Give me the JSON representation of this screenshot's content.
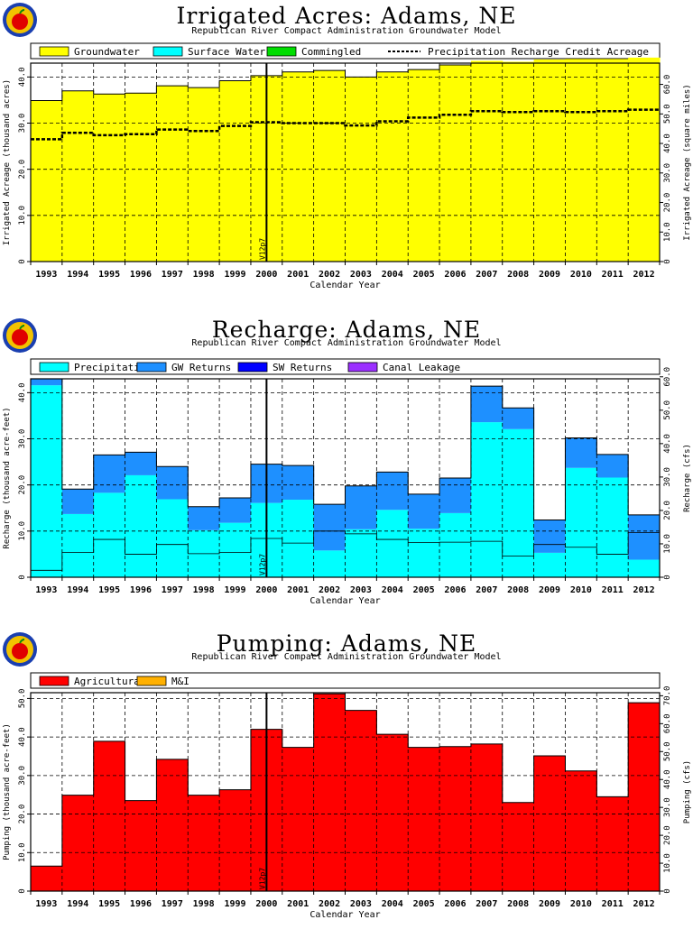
{
  "colors": {
    "groundwater": "#ffff00",
    "surface_water": "#00ffff",
    "commingled": "#00dd00",
    "precipitation": "#00ffff",
    "gw_returns": "#1e90ff",
    "sw_returns": "#0000ff",
    "canal_leakage": "#9b30ff",
    "agricultural": "#ff0000",
    "mi": "#ffb000"
  },
  "chart_data": [
    {
      "type": "bar",
      "title": "Irrigated Acres: Adams, NE",
      "subtitle": "Republican River Compact Administration Groundwater Model",
      "xlabel": "Calendar Year",
      "ylabel": "Irrigated Acreage (thousand acres)",
      "ylabel_right": "Irrigated Acreage (square miles)",
      "categories": [
        "1993",
        "1994",
        "1995",
        "1996",
        "1997",
        "1998",
        "1999",
        "2000",
        "2001",
        "2002",
        "2003",
        "2004",
        "2005",
        "2006",
        "2007",
        "2008",
        "2009",
        "2010",
        "2011",
        "2012"
      ],
      "ylim": [
        0,
        43
      ],
      "yticks": [
        10.0,
        20.0,
        30.0,
        40.0
      ],
      "yticks_right": [
        10.0,
        20.0,
        30.0,
        40.0,
        50.0,
        60.0
      ],
      "series": [
        {
          "name": "Groundwater",
          "values": [
            34.9,
            37.0,
            36.3,
            36.5,
            38.1,
            37.7,
            39.2,
            40.3,
            41.1,
            41.4,
            40.0,
            41.1,
            41.6,
            42.6,
            43.5,
            43.3,
            43.8,
            43.9,
            43.9,
            44.2
          ]
        },
        {
          "name": "Surface Water",
          "values": [
            0,
            0,
            0,
            0,
            0,
            0,
            0,
            0,
            0,
            0,
            0,
            0,
            0,
            0,
            0,
            0,
            0,
            0,
            0,
            0
          ]
        },
        {
          "name": "Commingled",
          "values": [
            0,
            0,
            0,
            0,
            0,
            0,
            0,
            0,
            0,
            0,
            0,
            0,
            0,
            0,
            0,
            0,
            0,
            0,
            0,
            0
          ]
        }
      ],
      "line_series": {
        "name": "Precipitation Recharge Credit Acreage",
        "values": [
          26.5,
          27.9,
          27.4,
          27.6,
          28.6,
          28.3,
          29.4,
          30.2,
          30.0,
          30.0,
          29.5,
          30.4,
          31.2,
          31.8,
          32.6,
          32.4,
          32.6,
          32.4,
          32.6,
          32.9
        ]
      },
      "marker": {
        "label": "V12p7",
        "at": "2000.5"
      }
    },
    {
      "type": "bar",
      "title": "Recharge: Adams, NE",
      "subtitle": "Republican River Compact Administration Groundwater Model",
      "xlabel": "Calendar Year",
      "ylabel": "Recharge (thousand acre-feet)",
      "ylabel_right": "Recharge (cfs)",
      "categories": [
        "1993",
        "1994",
        "1995",
        "1996",
        "1997",
        "1998",
        "1999",
        "2000",
        "2001",
        "2002",
        "2003",
        "2004",
        "2005",
        "2006",
        "2007",
        "2008",
        "2009",
        "2010",
        "2011",
        "2012"
      ],
      "ylim": [
        0,
        43
      ],
      "yticks": [
        10.0,
        20.0,
        30.0,
        40.0
      ],
      "yticks_right": [
        10.0,
        20.0,
        30.0,
        40.0,
        50.0,
        60.0
      ],
      "series": [
        {
          "name": "Precipitation",
          "values": [
            41.6,
            13.7,
            18.3,
            22.1,
            16.9,
            10.2,
            11.8,
            16.1,
            16.8,
            5.8,
            10.4,
            14.6,
            10.5,
            13.9,
            33.6,
            32.1,
            5.3,
            23.7,
            21.6,
            3.8
          ]
        },
        {
          "name": "GW Returns",
          "values": [
            1.5,
            5.4,
            8.2,
            5.0,
            7.1,
            5.1,
            5.4,
            8.4,
            7.4,
            10.0,
            9.4,
            8.2,
            7.5,
            7.6,
            7.8,
            4.6,
            7.1,
            6.5,
            5.0,
            9.7
          ]
        },
        {
          "name": "SW Returns",
          "values": [
            0,
            0,
            0,
            0,
            0,
            0,
            0,
            0,
            0,
            0,
            0,
            0,
            0,
            0,
            0,
            0,
            0,
            0,
            0,
            0
          ]
        },
        {
          "name": "Canal Leakage",
          "values": [
            0,
            0,
            0,
            0,
            0,
            0,
            0,
            0,
            0,
            0,
            0,
            0,
            0,
            0,
            0,
            0,
            0,
            0,
            0,
            0
          ]
        }
      ],
      "marker": {
        "label": "V12p7",
        "at": "2000.5"
      }
    },
    {
      "type": "bar",
      "title": "Pumping: Adams, NE",
      "subtitle": "Republican River Compact Administration Groundwater Model",
      "xlabel": "Calendar Year",
      "ylabel": "Pumping (thousand acre-feet)",
      "ylabel_right": "Pumping (cfs)",
      "categories": [
        "1993",
        "1994",
        "1995",
        "1996",
        "1997",
        "1998",
        "1999",
        "2000",
        "2001",
        "2002",
        "2003",
        "2004",
        "2005",
        "2006",
        "2007",
        "2008",
        "2009",
        "2010",
        "2011",
        "2012"
      ],
      "ylim": [
        0,
        51.5
      ],
      "yticks": [
        10.0,
        20.0,
        30.0,
        40.0,
        50.0
      ],
      "yticks_right": [
        10.0,
        20.0,
        30.0,
        40.0,
        50.0,
        60.0,
        70.0
      ],
      "series": [
        {
          "name": "Agricultural",
          "values": [
            6.5,
            24.9,
            38.9,
            23.5,
            34.2,
            24.9,
            26.3,
            42.0,
            37.3,
            51.2,
            46.9,
            40.7,
            37.3,
            37.5,
            38.2,
            23.0,
            35.1,
            31.2,
            24.5,
            48.9
          ]
        },
        {
          "name": "M&I",
          "values": [
            0,
            0,
            0,
            0,
            0,
            0,
            0,
            0,
            0,
            0,
            0,
            0,
            0,
            0,
            0,
            0,
            0,
            0,
            0,
            0
          ]
        }
      ],
      "marker": {
        "label": "V12p7",
        "at": "2000.5"
      }
    }
  ]
}
